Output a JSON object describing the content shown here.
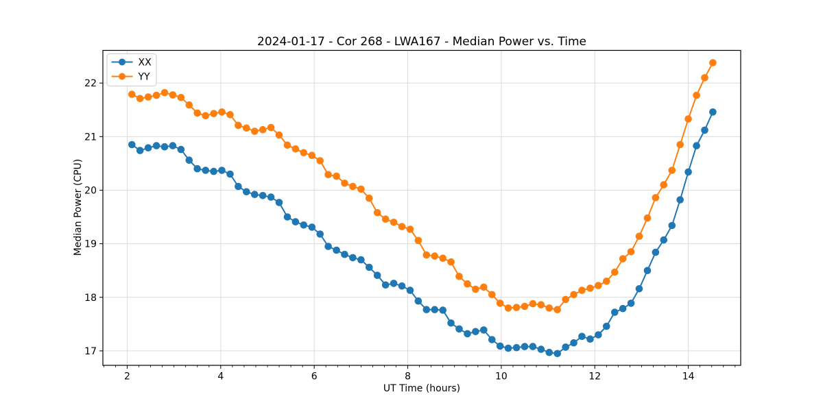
{
  "figure": {
    "background": "#ffffff",
    "title": "2024-01-17 - Cor 268 - LWA167 - Median Power vs. Time"
  },
  "chart_data": {
    "type": "line",
    "title": "2024-01-17 - Cor 268 - LWA167 - Median Power vs. Time",
    "xlabel": "UT Time (hours)",
    "ylabel": "Median Power (CPU)",
    "xlim": [
      1.48,
      15.12
    ],
    "ylim": [
      16.73,
      22.61
    ],
    "x_major_ticks": [
      2,
      4,
      6,
      8,
      10,
      12,
      14
    ],
    "x_minor_tick_step": 0.25,
    "y_ticks": [
      17,
      18,
      19,
      20,
      21,
      22
    ],
    "grid": true,
    "grid_color": "#dcdcdc",
    "legend_position": "upper left",
    "marker": "circle",
    "x": [
      2.1,
      2.275,
      2.45,
      2.625,
      2.8,
      2.975,
      3.15,
      3.325,
      3.5,
      3.675,
      3.85,
      4.025,
      4.2,
      4.375,
      4.55,
      4.725,
      4.9,
      5.075,
      5.25,
      5.425,
      5.6,
      5.775,
      5.95,
      6.125,
      6.3,
      6.475,
      6.65,
      6.825,
      7.0,
      7.175,
      7.35,
      7.525,
      7.7,
      7.875,
      8.05,
      8.225,
      8.4,
      8.575,
      8.75,
      8.925,
      9.1,
      9.275,
      9.45,
      9.625,
      9.8,
      9.975,
      10.15,
      10.325,
      10.5,
      10.675,
      10.85,
      11.025,
      11.2,
      11.375,
      11.55,
      11.725,
      11.9,
      12.075,
      12.25,
      12.425,
      12.6,
      12.775,
      12.95,
      13.125,
      13.3,
      13.475,
      13.65,
      13.825,
      14.0,
      14.175,
      14.35,
      14.525
    ],
    "series": [
      {
        "name": "XX",
        "color": "#1f77b4",
        "values": [
          20.85,
          20.74,
          20.79,
          20.83,
          20.81,
          20.83,
          20.76,
          20.56,
          20.4,
          20.37,
          20.35,
          20.37,
          20.3,
          20.07,
          19.97,
          19.92,
          19.9,
          19.87,
          19.77,
          19.5,
          19.41,
          19.35,
          19.31,
          19.18,
          18.95,
          18.88,
          18.8,
          18.74,
          18.7,
          18.56,
          18.41,
          18.23,
          18.26,
          18.21,
          18.13,
          17.93,
          17.77,
          17.77,
          17.76,
          17.52,
          17.41,
          17.32,
          17.36,
          17.39,
          17.21,
          17.09,
          17.05,
          17.06,
          17.08,
          17.08,
          17.03,
          16.97,
          16.95,
          17.07,
          17.15,
          17.27,
          17.22,
          17.3,
          17.46,
          17.72,
          17.79,
          17.89,
          18.16,
          18.5,
          18.84,
          19.07,
          19.34,
          19.82,
          20.34,
          20.83,
          21.12,
          21.46
        ]
      },
      {
        "name": "YY",
        "color": "#ff7f0e",
        "values": [
          21.79,
          21.71,
          21.74,
          21.77,
          21.82,
          21.78,
          21.73,
          21.59,
          21.44,
          21.39,
          21.43,
          21.46,
          21.41,
          21.21,
          21.16,
          21.1,
          21.13,
          21.17,
          21.03,
          20.84,
          20.77,
          20.7,
          20.65,
          20.55,
          20.29,
          20.26,
          20.13,
          20.07,
          20.02,
          19.85,
          19.58,
          19.46,
          19.4,
          19.32,
          19.27,
          19.06,
          18.79,
          18.77,
          18.73,
          18.66,
          18.39,
          18.25,
          18.15,
          18.19,
          18.05,
          17.89,
          17.8,
          17.81,
          17.83,
          17.88,
          17.86,
          17.8,
          17.77,
          17.96,
          18.05,
          18.13,
          18.17,
          18.22,
          18.3,
          18.47,
          18.72,
          18.85,
          19.14,
          19.48,
          19.86,
          20.1,
          20.37,
          20.85,
          21.33,
          21.77,
          22.1,
          22.38
        ]
      }
    ]
  }
}
